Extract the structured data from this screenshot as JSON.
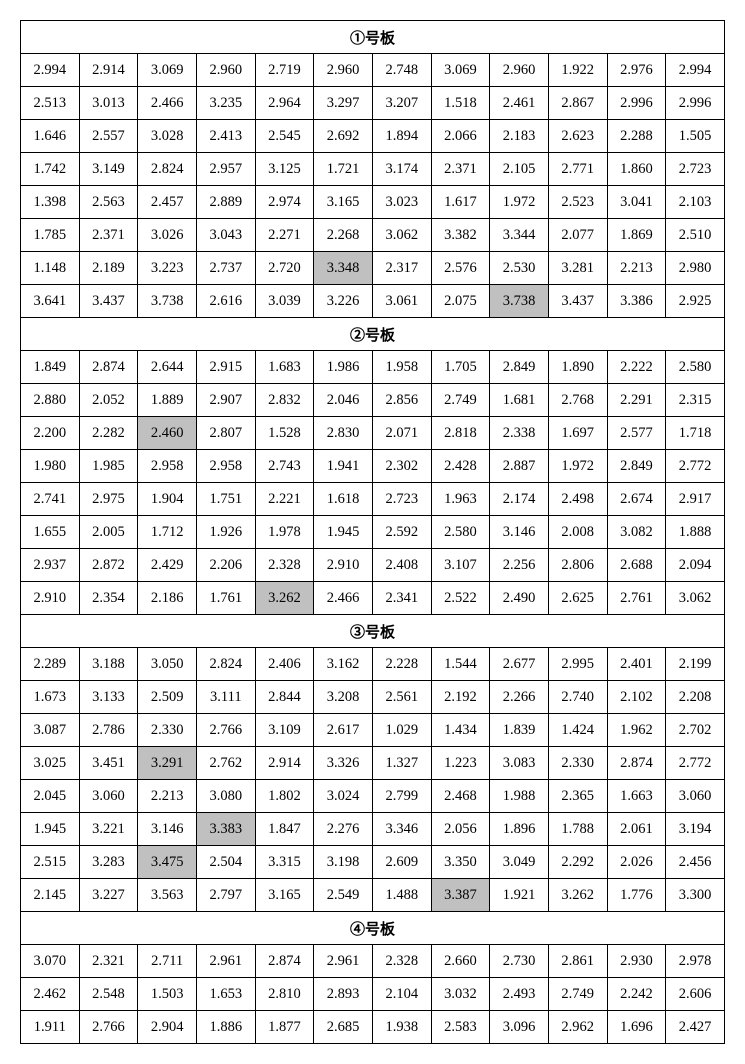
{
  "sections": [
    {
      "title": "①号板",
      "rows": [
        [
          "2.994",
          "2.914",
          "3.069",
          "2.960",
          "2.719",
          "2.960",
          "2.748",
          "3.069",
          "2.960",
          "1.922",
          "2.976",
          "2.994"
        ],
        [
          "2.513",
          "3.013",
          "2.466",
          "3.235",
          "2.964",
          "3.297",
          "3.207",
          "1.518",
          "2.461",
          "2.867",
          "2.996",
          "2.996"
        ],
        [
          "1.646",
          "2.557",
          "3.028",
          "2.413",
          "2.545",
          "2.692",
          "1.894",
          "2.066",
          "2.183",
          "2.623",
          "2.288",
          "1.505"
        ],
        [
          "1.742",
          "3.149",
          "2.824",
          "2.957",
          "3.125",
          "1.721",
          "3.174",
          "2.371",
          "2.105",
          "2.771",
          "1.860",
          "2.723"
        ],
        [
          "1.398",
          "2.563",
          "2.457",
          "2.889",
          "2.974",
          "3.165",
          "3.023",
          "1.617",
          "1.972",
          "2.523",
          "3.041",
          "2.103"
        ],
        [
          "1.785",
          "2.371",
          "3.026",
          "3.043",
          "2.271",
          "2.268",
          "3.062",
          "3.382",
          "3.344",
          "2.077",
          "1.869",
          "2.510"
        ],
        [
          "1.148",
          "2.189",
          "3.223",
          "2.737",
          "2.720",
          "3.348",
          "2.317",
          "2.576",
          "2.530",
          "3.281",
          "2.213",
          "2.980"
        ],
        [
          "3.641",
          "3.437",
          "3.738",
          "2.616",
          "3.039",
          "3.226",
          "3.061",
          "2.075",
          "3.738",
          "3.437",
          "3.386",
          "2.925"
        ]
      ],
      "highlights": [
        [
          6,
          5
        ],
        [
          7,
          8
        ]
      ]
    },
    {
      "title": "②号板",
      "rows": [
        [
          "1.849",
          "2.874",
          "2.644",
          "2.915",
          "1.683",
          "1.986",
          "1.958",
          "1.705",
          "2.849",
          "1.890",
          "2.222",
          "2.580"
        ],
        [
          "2.880",
          "2.052",
          "1.889",
          "2.907",
          "2.832",
          "2.046",
          "2.856",
          "2.749",
          "1.681",
          "2.768",
          "2.291",
          "2.315"
        ],
        [
          "2.200",
          "2.282",
          "2.460",
          "2.807",
          "1.528",
          "2.830",
          "2.071",
          "2.818",
          "2.338",
          "1.697",
          "2.577",
          "1.718"
        ],
        [
          "1.980",
          "1.985",
          "2.958",
          "2.958",
          "2.743",
          "1.941",
          "2.302",
          "2.428",
          "2.887",
          "1.972",
          "2.849",
          "2.772"
        ],
        [
          "2.741",
          "2.975",
          "1.904",
          "1.751",
          "2.221",
          "1.618",
          "2.723",
          "1.963",
          "2.174",
          "2.498",
          "2.674",
          "2.917"
        ],
        [
          "1.655",
          "2.005",
          "1.712",
          "1.926",
          "1.978",
          "1.945",
          "2.592",
          "2.580",
          "3.146",
          "2.008",
          "3.082",
          "1.888"
        ],
        [
          "2.937",
          "2.872",
          "2.429",
          "2.206",
          "2.328",
          "2.910",
          "2.408",
          "3.107",
          "2.256",
          "2.806",
          "2.688",
          "2.094"
        ],
        [
          "2.910",
          "2.354",
          "2.186",
          "1.761",
          "3.262",
          "2.466",
          "2.341",
          "2.522",
          "2.490",
          "2.625",
          "2.761",
          "3.062"
        ]
      ],
      "highlights": [
        [
          2,
          2
        ],
        [
          7,
          4
        ]
      ]
    },
    {
      "title": "③号板",
      "rows": [
        [
          "2.289",
          "3.188",
          "3.050",
          "2.824",
          "2.406",
          "3.162",
          "2.228",
          "1.544",
          "2.677",
          "2.995",
          "2.401",
          "2.199"
        ],
        [
          "1.673",
          "3.133",
          "2.509",
          "3.111",
          "2.844",
          "3.208",
          "2.561",
          "2.192",
          "2.266",
          "2.740",
          "2.102",
          "2.208"
        ],
        [
          "3.087",
          "2.786",
          "2.330",
          "2.766",
          "3.109",
          "2.617",
          "1.029",
          "1.434",
          "1.839",
          "1.424",
          "1.962",
          "2.702"
        ],
        [
          "3.025",
          "3.451",
          "3.291",
          "2.762",
          "2.914",
          "3.326",
          "1.327",
          "1.223",
          "3.083",
          "2.330",
          "2.874",
          "2.772"
        ],
        [
          "2.045",
          "3.060",
          "2.213",
          "3.080",
          "1.802",
          "3.024",
          "2.799",
          "2.468",
          "1.988",
          "2.365",
          "1.663",
          "3.060"
        ],
        [
          "1.945",
          "3.221",
          "3.146",
          "3.383",
          "1.847",
          "2.276",
          "3.346",
          "2.056",
          "1.896",
          "1.788",
          "2.061",
          "3.194"
        ],
        [
          "2.515",
          "3.283",
          "3.475",
          "2.504",
          "3.315",
          "3.198",
          "2.609",
          "3.350",
          "3.049",
          "2.292",
          "2.026",
          "2.456"
        ],
        [
          "2.145",
          "3.227",
          "3.563",
          "2.797",
          "3.165",
          "2.549",
          "1.488",
          "3.387",
          "1.921",
          "3.262",
          "1.776",
          "3.300"
        ]
      ],
      "highlights": [
        [
          3,
          2
        ],
        [
          5,
          3
        ],
        [
          6,
          2
        ],
        [
          7,
          7
        ]
      ]
    },
    {
      "title": "④号板",
      "rows": [
        [
          "3.070",
          "2.321",
          "2.711",
          "2.961",
          "2.874",
          "2.961",
          "2.328",
          "2.660",
          "2.730",
          "2.861",
          "2.930",
          "2.978"
        ],
        [
          "2.462",
          "2.548",
          "1.503",
          "1.653",
          "2.810",
          "2.893",
          "2.104",
          "3.032",
          "2.493",
          "2.749",
          "2.242",
          "2.606"
        ],
        [
          "1.911",
          "2.766",
          "2.904",
          "1.886",
          "1.877",
          "2.685",
          "1.938",
          "2.583",
          "3.096",
          "2.962",
          "1.696",
          "2.427"
        ]
      ],
      "highlights": []
    }
  ]
}
